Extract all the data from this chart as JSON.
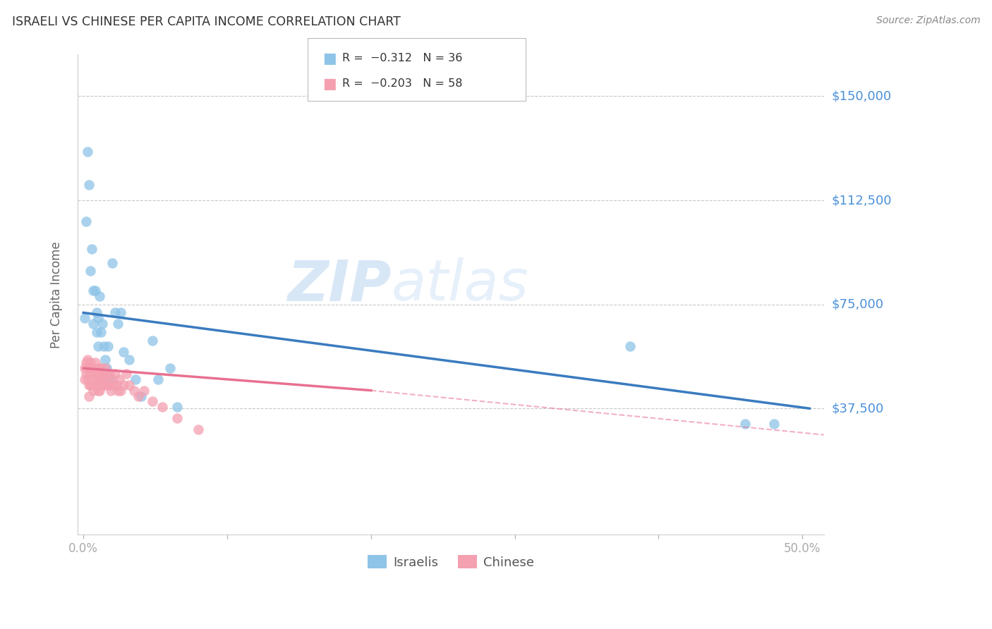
{
  "title": "ISRAELI VS CHINESE PER CAPITA INCOME CORRELATION CHART",
  "source": "Source: ZipAtlas.com",
  "ylabel": "Per Capita Income",
  "ytick_labels": [
    "$37,500",
    "$75,000",
    "$112,500",
    "$150,000"
  ],
  "ytick_values": [
    37500,
    75000,
    112500,
    150000
  ],
  "ylim": [
    -8000,
    165000
  ],
  "xlim": [
    -0.004,
    0.515
  ],
  "legend_line1": "R =  −0.312   N = 36",
  "legend_line2": "R =  −0.203   N = 58",
  "israeli_color": "#8ec4e8",
  "chinese_color": "#f4a0b0",
  "israeli_trend_color": "#3a7bbf",
  "chinese_trend_color": "#e87090",
  "background_color": "#ffffff",
  "grid_color": "#c8c8c8",
  "watermark_zip": "ZIP",
  "watermark_atlas": "atlas",
  "israeli_points_x": [
    0.001,
    0.002,
    0.003,
    0.004,
    0.005,
    0.006,
    0.007,
    0.007,
    0.008,
    0.009,
    0.009,
    0.01,
    0.01,
    0.011,
    0.012,
    0.013,
    0.014,
    0.015,
    0.016,
    0.017,
    0.018,
    0.02,
    0.022,
    0.024,
    0.026,
    0.028,
    0.032,
    0.036,
    0.04,
    0.048,
    0.052,
    0.06,
    0.065,
    0.38,
    0.46,
    0.48
  ],
  "israeli_points_y": [
    70000,
    105000,
    130000,
    118000,
    87000,
    95000,
    80000,
    68000,
    80000,
    72000,
    65000,
    60000,
    70000,
    78000,
    65000,
    68000,
    60000,
    55000,
    52000,
    60000,
    48000,
    90000,
    72000,
    68000,
    72000,
    58000,
    55000,
    48000,
    42000,
    62000,
    48000,
    52000,
    38000,
    60000,
    32000,
    32000
  ],
  "chinese_points_x": [
    0.001,
    0.001,
    0.002,
    0.002,
    0.003,
    0.003,
    0.004,
    0.004,
    0.004,
    0.005,
    0.005,
    0.005,
    0.006,
    0.006,
    0.007,
    0.007,
    0.007,
    0.008,
    0.008,
    0.008,
    0.009,
    0.009,
    0.01,
    0.01,
    0.01,
    0.011,
    0.011,
    0.011,
    0.012,
    0.012,
    0.013,
    0.013,
    0.014,
    0.014,
    0.015,
    0.015,
    0.016,
    0.017,
    0.018,
    0.018,
    0.019,
    0.02,
    0.021,
    0.022,
    0.023,
    0.024,
    0.025,
    0.026,
    0.028,
    0.03,
    0.032,
    0.035,
    0.038,
    0.042,
    0.048,
    0.055,
    0.065,
    0.08
  ],
  "chinese_points_y": [
    52000,
    48000,
    54000,
    50000,
    55000,
    48000,
    52000,
    46000,
    42000,
    54000,
    50000,
    46000,
    52000,
    46000,
    52000,
    48000,
    44000,
    54000,
    50000,
    46000,
    50000,
    46000,
    52000,
    48000,
    44000,
    52000,
    48000,
    44000,
    52000,
    48000,
    50000,
    46000,
    50000,
    46000,
    52000,
    48000,
    50000,
    46000,
    50000,
    46000,
    44000,
    48000,
    46000,
    50000,
    46000,
    44000,
    48000,
    44000,
    46000,
    50000,
    46000,
    44000,
    42000,
    44000,
    40000,
    38000,
    34000,
    30000
  ],
  "israeli_trend_x0": 0.0,
  "israeli_trend_x1": 0.505,
  "israeli_trend_y0": 72000,
  "israeli_trend_y1": 37500,
  "chinese_trend_solid_x0": 0.0,
  "chinese_trend_solid_x1": 0.2,
  "chinese_trend_solid_y0": 52000,
  "chinese_trend_solid_y1": 44000,
  "chinese_trend_dash_x0": 0.2,
  "chinese_trend_dash_x1": 0.515,
  "chinese_trend_dash_y0": 44000,
  "chinese_trend_dash_y1": 28000
}
